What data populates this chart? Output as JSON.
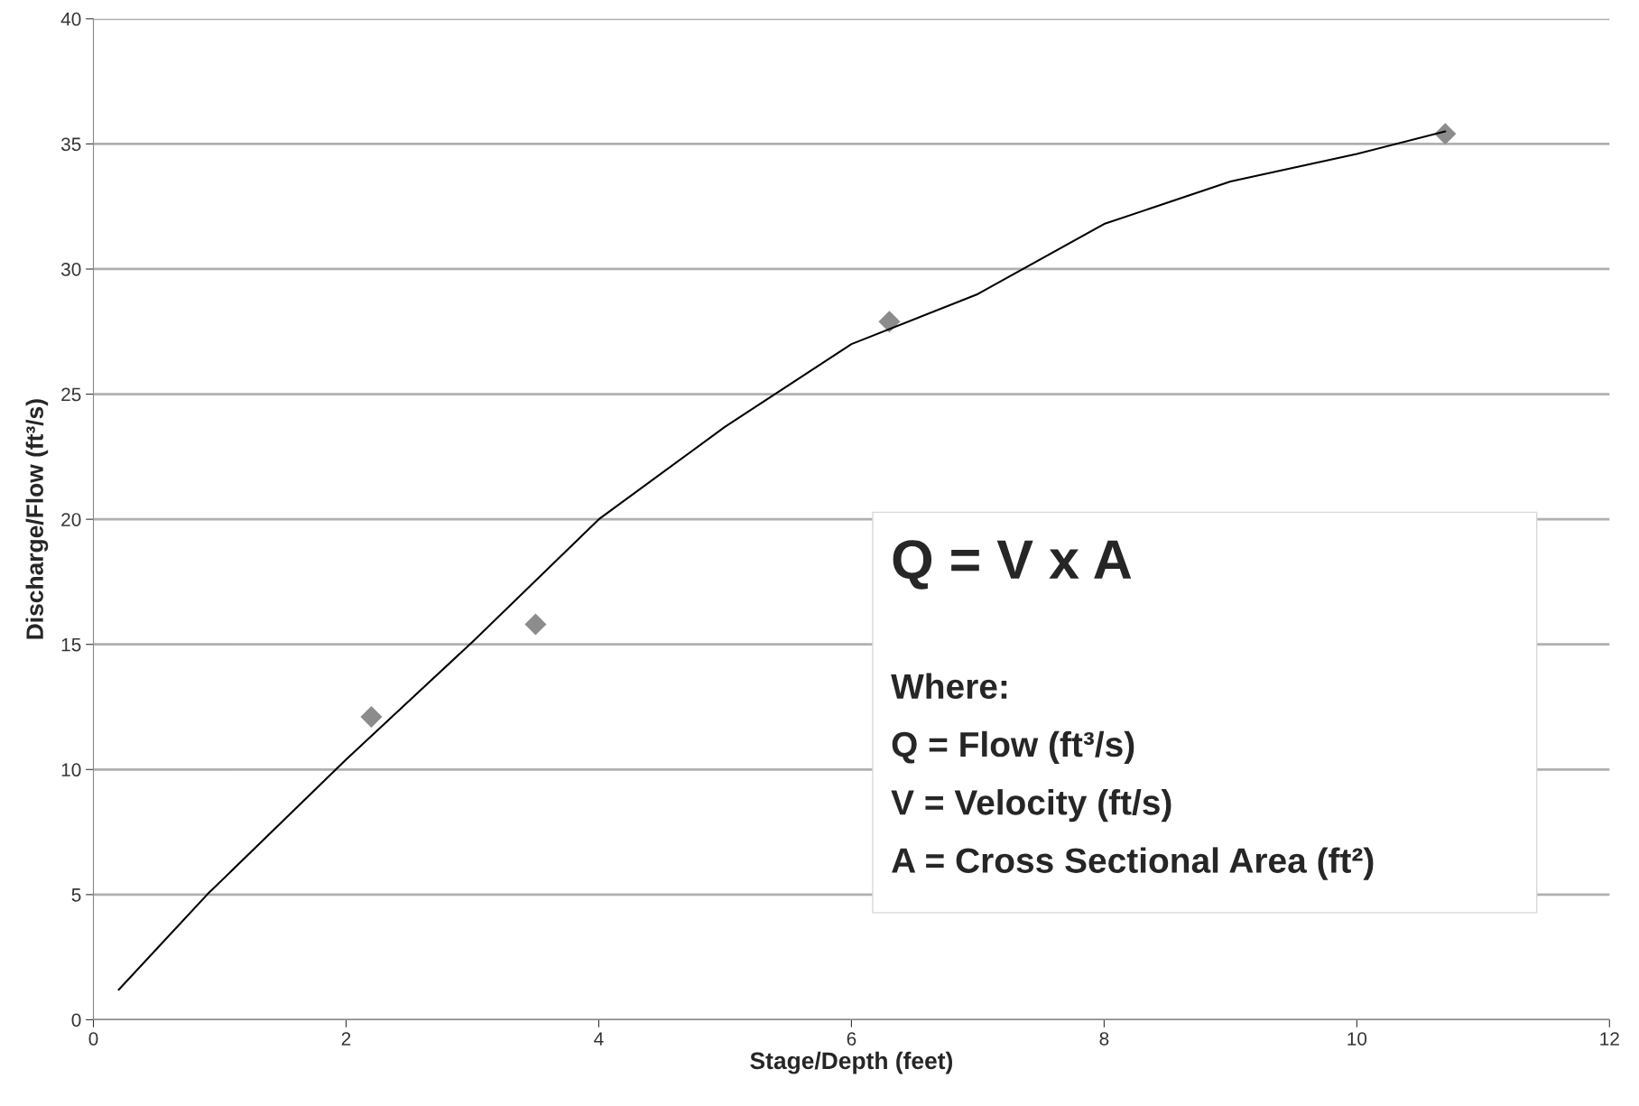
{
  "chart_data": {
    "type": "scatter",
    "xlabel": "Stage/Depth (feet)",
    "ylabel": "Discharge/Flow (ft³/s)",
    "series": [
      {
        "color": "#8c8c8c",
        "marker": "diamond",
        "x": [
          2.2,
          3.5,
          6.3,
          10.7
        ],
        "values": [
          12.1,
          15.8,
          27.9,
          35.4
        ]
      },
      {
        "type": "line",
        "color": "#000000",
        "marker": "none",
        "line_style": "solid",
        "x": [
          0.2,
          0.9,
          2.0,
          3.0,
          4.0,
          5.0,
          6.0,
          7.0,
          8.0,
          9.0,
          10.0,
          10.7
        ],
        "values": [
          1.2,
          5.0,
          10.4,
          15.1,
          20.0,
          23.7,
          27.0,
          29.0,
          31.8,
          33.5,
          34.6,
          35.5
        ]
      }
    ],
    "xlim": [
      0,
      12
    ],
    "xticks": [
      0,
      2,
      4,
      6,
      8,
      10,
      12
    ],
    "ylim": [
      0,
      40
    ],
    "yticks": [
      0,
      5,
      10,
      15,
      20,
      25,
      30,
      35,
      40
    ],
    "grid": "y",
    "legend": false,
    "annotations": [
      "Q = V x A",
      "Where:",
      "Q = Flow (ft³/s)",
      "V = Velocity (ft/s)",
      "A = Cross Sectional Area (ft²)"
    ]
  }
}
